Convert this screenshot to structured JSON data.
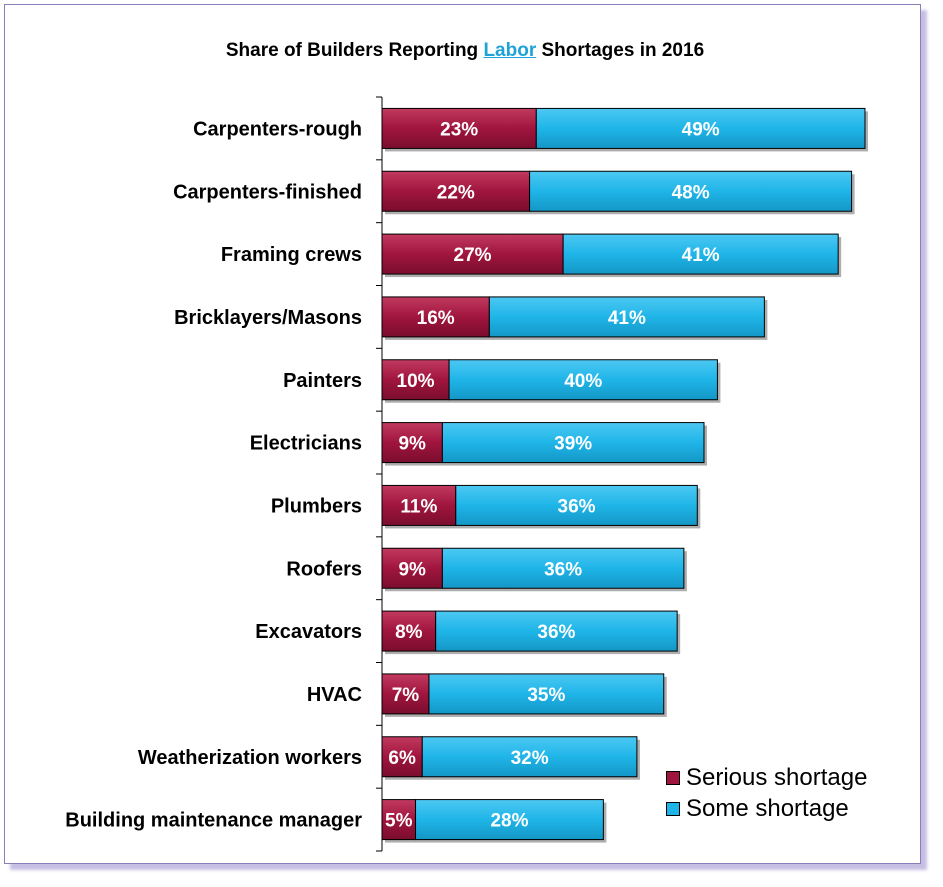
{
  "chart_data": {
    "type": "bar",
    "orientation": "horizontal",
    "stacked": true,
    "title_parts": {
      "prefix": "Share of Builders Reporting ",
      "highlight": "Labor",
      "suffix": " Shortages in 2016"
    },
    "title": "Share of Builders Reporting Labor Shortages in 2016",
    "categories": [
      "Carpenters-rough",
      "Carpenters-finished",
      "Framing crews",
      "Bricklayers/Masons",
      "Painters",
      "Electricians",
      "Plumbers",
      "Roofers",
      "Excavators",
      "HVAC",
      "Weatherization workers",
      "Building maintenance manager"
    ],
    "series": [
      {
        "name": "Serious shortage",
        "color": "#a0153e",
        "values": [
          23,
          22,
          27,
          16,
          10,
          9,
          11,
          9,
          8,
          7,
          6,
          5
        ],
        "labels": [
          "23%",
          "22%",
          "27%",
          "16%",
          "10%",
          "9%",
          "11%",
          "9%",
          "8%",
          "7%",
          "6%",
          "5%"
        ]
      },
      {
        "name": "Some shortage",
        "color": "#1fb5e8",
        "values": [
          49,
          48,
          41,
          41,
          40,
          39,
          36,
          36,
          36,
          35,
          32,
          28
        ],
        "labels": [
          "49%",
          "48%",
          "41%",
          "41%",
          "40%",
          "39%",
          "36%",
          "36%",
          "36%",
          "35%",
          "32%",
          "28%"
        ]
      }
    ],
    "xlim": [
      0,
      75
    ],
    "legend": "bottom-right",
    "grid": false
  }
}
